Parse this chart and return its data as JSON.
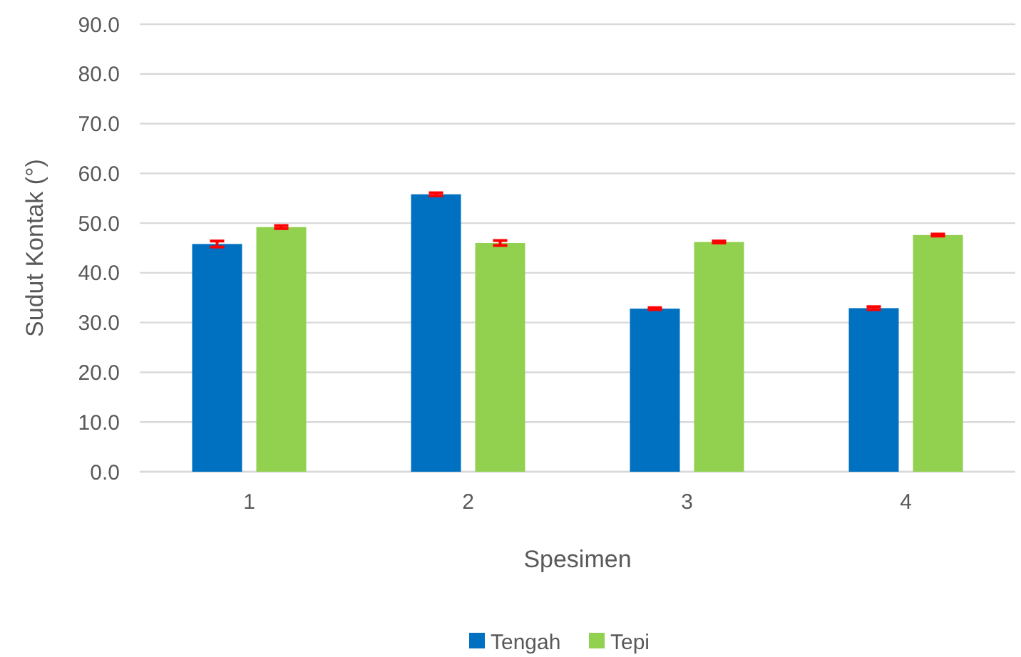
{
  "chart_data": {
    "type": "bar",
    "xlabel": "Spesimen",
    "ylabel": "Sudut Kontak (°)",
    "categories": [
      "1",
      "2",
      "3",
      "4"
    ],
    "series": [
      {
        "name": "Tengah",
        "color": "#0070c0",
        "values": [
          45.8,
          55.8,
          32.8,
          32.9
        ],
        "errors": [
          0.6,
          0.3,
          0.2,
          0.3
        ]
      },
      {
        "name": "Tepi",
        "color": "#92d050",
        "values": [
          49.2,
          46.0,
          46.2,
          47.6
        ],
        "errors": [
          0.3,
          0.5,
          0.2,
          0.2
        ]
      }
    ],
    "ylim": [
      0,
      90
    ],
    "yticks": [
      {
        "value": 0,
        "label": "0.0"
      },
      {
        "value": 10,
        "label": "10.0"
      },
      {
        "value": 20,
        "label": "20.0"
      },
      {
        "value": 30,
        "label": "30.0"
      },
      {
        "value": 40,
        "label": "40.0"
      },
      {
        "value": 50,
        "label": "50.0"
      },
      {
        "value": 60,
        "label": "60.0"
      },
      {
        "value": 70,
        "label": "70.0"
      },
      {
        "value": 80,
        "label": "80.0"
      },
      {
        "value": 90,
        "label": "90.0"
      }
    ],
    "grid": "y",
    "legend": "bottom"
  }
}
